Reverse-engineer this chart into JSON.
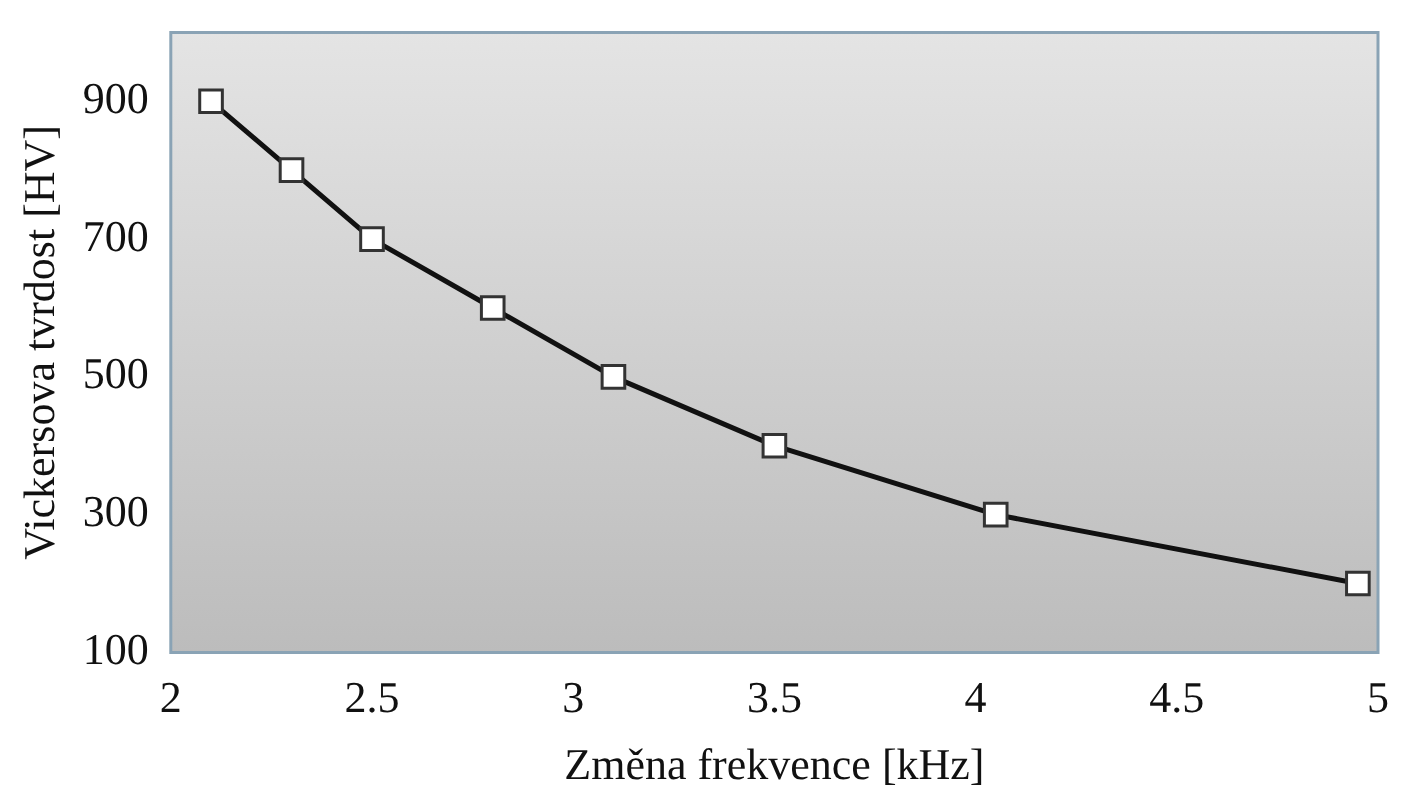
{
  "chart_data": {
    "type": "line",
    "xlabel": "Změna frekvence [kHz]",
    "ylabel": "Vickersova tvrdost [HV]",
    "x": [
      2.1,
      2.3,
      2.5,
      2.8,
      3.1,
      3.5,
      4.05,
      4.95
    ],
    "series": [
      {
        "color": "#111111",
        "values": [
          900,
          800,
          700,
          600,
          500,
          400,
          300,
          200
        ]
      }
    ],
    "xlim": [
      2,
      5
    ],
    "xticks": [
      2,
      2.5,
      3,
      3.5,
      4,
      4.5,
      5
    ],
    "ylim": [
      100,
      1000
    ],
    "yticks": [
      100,
      300,
      500,
      700,
      900
    ],
    "marker": "square",
    "line_style": "solid",
    "grid": false,
    "legend": false
  }
}
